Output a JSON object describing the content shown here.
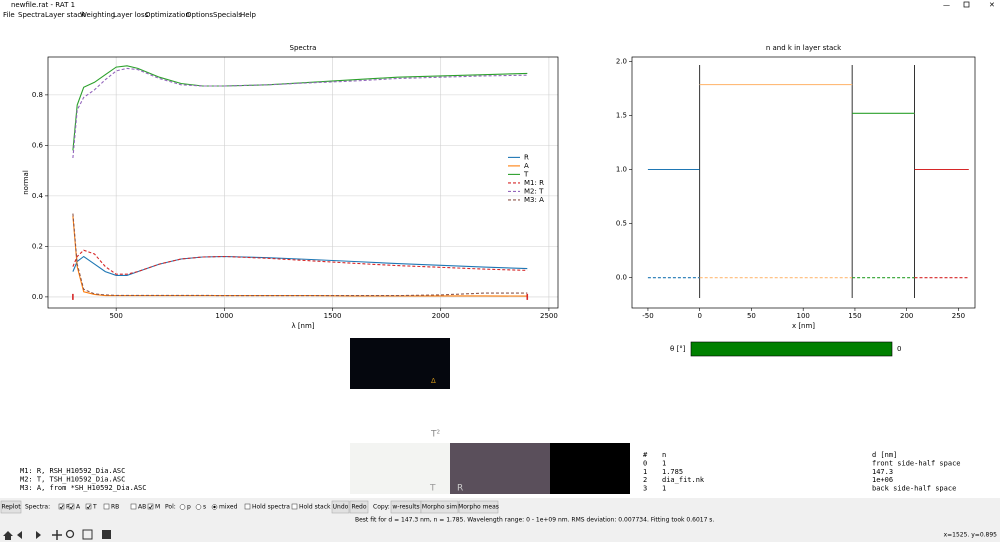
{
  "window": {
    "title": "newfile.rat - RAT 1"
  },
  "menu": [
    "File",
    "Spectra",
    "Layer stack",
    "Weighting",
    "Layer loss",
    "Optimization",
    "Options",
    "Specials",
    "Help"
  ],
  "chart_data": [
    {
      "type": "line",
      "title": "Spectra",
      "xlabel": "λ [nm]",
      "ylabel": "normal",
      "grid": true,
      "legend": "center right",
      "xlim": [
        185,
        2542
      ],
      "ylim": [
        -0.044,
        0.95
      ],
      "xticks": [
        500,
        1000,
        1500,
        2000,
        2500
      ],
      "yticks": [
        {
          "value": 0,
          "label": "0.0"
        },
        0.2,
        0.4,
        0.6,
        0.8
      ],
      "x": [
        300,
        320,
        350,
        400,
        450,
        500,
        550,
        600,
        700,
        800,
        900,
        1000,
        1200,
        1400,
        1600,
        1800,
        2000,
        2200,
        2400
      ],
      "markers": [
        300,
        2400
      ],
      "marker_color": "#d62728",
      "series": [
        {
          "name": "R",
          "color": "#1f77b4",
          "dash": false,
          "values": [
            0.1,
            0.14,
            0.16,
            0.13,
            0.1,
            0.085,
            0.085,
            0.1,
            0.13,
            0.15,
            0.158,
            0.16,
            0.155,
            0.148,
            0.14,
            0.132,
            0.125,
            0.118,
            0.112
          ]
        },
        {
          "name": "A",
          "color": "#ff7f0e",
          "dash": false,
          "values": [
            0.32,
            0.12,
            0.02,
            0.01,
            0.005,
            0.005,
            0.005,
            0.005,
            0.005,
            0.005,
            0.005,
            0.005,
            0.005,
            0.005,
            0.004,
            0.004,
            0.004,
            0.004,
            0.003
          ]
        },
        {
          "name": "T",
          "color": "#2ca02c",
          "dash": false,
          "values": [
            0.58,
            0.76,
            0.83,
            0.85,
            0.88,
            0.91,
            0.915,
            0.905,
            0.87,
            0.845,
            0.835,
            0.835,
            0.84,
            0.85,
            0.86,
            0.87,
            0.875,
            0.88,
            0.885
          ]
        },
        {
          "name": "M1: R",
          "color": "#d62728",
          "dash": true,
          "values": [
            0.12,
            0.16,
            0.185,
            0.17,
            0.12,
            0.09,
            0.09,
            0.1,
            0.13,
            0.15,
            0.158,
            0.16,
            0.153,
            0.143,
            0.133,
            0.124,
            0.117,
            0.11,
            0.105
          ]
        },
        {
          "name": "M2: T",
          "color": "#9467bd",
          "dash": true,
          "values": [
            0.55,
            0.74,
            0.79,
            0.82,
            0.86,
            0.895,
            0.905,
            0.9,
            0.865,
            0.84,
            0.835,
            0.835,
            0.84,
            0.848,
            0.855,
            0.865,
            0.87,
            0.875,
            0.878
          ]
        },
        {
          "name": "M3: A",
          "color": "#8c564b",
          "dash": true,
          "values": [
            0.33,
            0.13,
            0.03,
            0.012,
            0.008,
            0.006,
            0.006,
            0.006,
            0.006,
            0.006,
            0.006,
            0.005,
            0.005,
            0.005,
            0.005,
            0.005,
            0.008,
            0.015,
            0.015
          ]
        }
      ]
    },
    {
      "type": "line",
      "title": "n and k in layer stack",
      "xlabel": "x [nm]",
      "grid": false,
      "xlim": [
        -65.4,
        266
      ],
      "ylim": [
        -0.28,
        2.04
      ],
      "xticks": [
        -50,
        0,
        50,
        100,
        150,
        200,
        250
      ],
      "yticks": [
        {
          "value": 0,
          "label": "0.0"
        },
        0.5,
        {
          "value": 1,
          "label": "1.0"
        },
        1.5,
        {
          "value": 2,
          "label": "2.0"
        }
      ],
      "boundaries": [
        0,
        147.3,
        207.5
      ],
      "boundary_color": "#000000",
      "series": [
        {
          "color": "#1f77b4",
          "dash": false,
          "x": [
            -50,
            0
          ],
          "values": [
            1,
            1
          ]
        },
        {
          "color": "#ffbb78",
          "dash": false,
          "x": [
            0,
            147.3
          ],
          "values": [
            1.785,
            1.785
          ]
        },
        {
          "color": "#2ca02c",
          "dash": false,
          "x": [
            147.3,
            207.5
          ],
          "values": [
            1.52,
            1.52
          ]
        },
        {
          "color": "#d62728",
          "dash": false,
          "x": [
            207.5,
            260
          ],
          "values": [
            1,
            1
          ]
        },
        {
          "color": "#1f77b4",
          "dash": true,
          "x": [
            -50,
            0
          ],
          "values": [
            0,
            0
          ]
        },
        {
          "color": "#ffbb78",
          "dash": true,
          "x": [
            0,
            147.3
          ],
          "values": [
            0,
            0
          ]
        },
        {
          "color": "#2ca02c",
          "dash": true,
          "x": [
            147.3,
            207.5
          ],
          "values": [
            0,
            0
          ]
        },
        {
          "color": "#d62728",
          "dash": true,
          "x": [
            207.5,
            260
          ],
          "values": [
            0,
            0
          ]
        }
      ]
    }
  ],
  "angle": {
    "label": "θ [°]",
    "value": "0"
  },
  "color_boxes": {
    "top_mark": "Δ",
    "t2": "T²",
    "t": "T",
    "r": "R"
  },
  "models": [
    "M1: R, RSH_H10592_Dia.ASC",
    "M2: T, TSH_H10592_Dia.ASC",
    "M3: A, from *SH_H10592_Dia.ASC"
  ],
  "layer_table": {
    "header": [
      "#",
      "n",
      "d [nm]"
    ],
    "rows": [
      [
        "0",
        "1",
        "front side-half space"
      ],
      [
        "1",
        "1.785",
        "147.3"
      ],
      [
        "2",
        "dia_fit.nk",
        "1e+06"
      ],
      [
        "3",
        "1",
        "back side-half space"
      ]
    ]
  },
  "toolbar": [
    "Replot",
    "Spectra:",
    "R",
    "A",
    "T",
    "RB",
    "AB",
    "M",
    "Pol:",
    "p",
    "s",
    "mixed",
    "Hold spectra",
    "Hold stack",
    "Undo",
    "Redo",
    "Copy:",
    "w-results",
    "Morpho sim",
    "Morpho meas"
  ],
  "status": "Best fit for d = 147.3 nm, n = 1.785. Wavelength range: 0 - 1e+09 nm. RMS deviation: 0.007734. Fitting took 0.6017 s.",
  "coords": "x=1525. y=0.895"
}
